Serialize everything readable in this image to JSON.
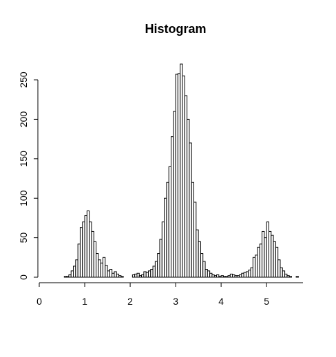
{
  "chart_data": {
    "type": "histogram",
    "title": "Histogram",
    "bins": [
      0.55,
      0.6,
      0.65,
      0.7,
      0.75,
      0.8,
      0.85,
      0.9,
      0.95,
      1.0,
      1.05,
      1.1,
      1.15,
      1.2,
      1.25,
      1.3,
      1.35,
      1.4,
      1.45,
      1.5,
      1.55,
      1.6,
      1.65,
      1.7,
      1.75,
      1.8,
      1.85,
      1.9,
      1.95,
      2.0,
      2.05,
      2.1,
      2.15,
      2.2,
      2.25,
      2.3,
      2.35,
      2.4,
      2.45,
      2.5,
      2.55,
      2.6,
      2.65,
      2.7,
      2.75,
      2.8,
      2.85,
      2.9,
      2.95,
      3.0,
      3.05,
      3.1,
      3.15,
      3.2,
      3.25,
      3.3,
      3.35,
      3.4,
      3.45,
      3.5,
      3.55,
      3.6,
      3.65,
      3.7,
      3.75,
      3.8,
      3.85,
      3.9,
      3.95,
      4.0,
      4.05,
      4.1,
      4.15,
      4.2,
      4.25,
      4.3,
      4.35,
      4.4,
      4.45,
      4.5,
      4.55,
      4.6,
      4.65,
      4.7,
      4.75,
      4.8,
      4.85,
      4.9,
      4.95,
      5.0,
      5.05,
      5.1,
      5.15,
      5.2,
      5.25,
      5.3,
      5.35,
      5.4,
      5.45,
      5.5,
      5.55,
      5.6,
      5.65,
      5.7
    ],
    "counts": [
      1,
      1,
      3,
      8,
      14,
      22,
      42,
      63,
      70,
      78,
      84,
      70,
      58,
      45,
      30,
      22,
      18,
      25,
      15,
      8,
      10,
      5,
      7,
      4,
      2,
      1,
      0,
      0,
      0,
      0,
      3,
      4,
      5,
      2,
      3,
      7,
      6,
      8,
      10,
      14,
      20,
      30,
      48,
      70,
      100,
      120,
      140,
      178,
      210,
      257,
      258,
      270,
      255,
      230,
      200,
      170,
      120,
      95,
      60,
      45,
      30,
      20,
      10,
      8,
      5,
      3,
      2,
      3,
      1,
      2,
      1,
      1,
      2,
      4,
      3,
      2,
      2,
      3,
      5,
      6,
      7,
      9,
      12,
      25,
      28,
      38,
      42,
      58,
      50,
      70,
      58,
      53,
      45,
      38,
      22,
      12,
      8,
      4,
      2,
      1,
      0,
      0,
      1
    ],
    "color": "#ffffff",
    "xlim": [
      0,
      5.8
    ],
    "xticks": [
      0,
      1,
      2,
      3,
      4,
      5
    ],
    "ylim": [
      0,
      280
    ],
    "yticks": [
      0,
      50,
      100,
      150,
      200,
      250
    ]
  }
}
